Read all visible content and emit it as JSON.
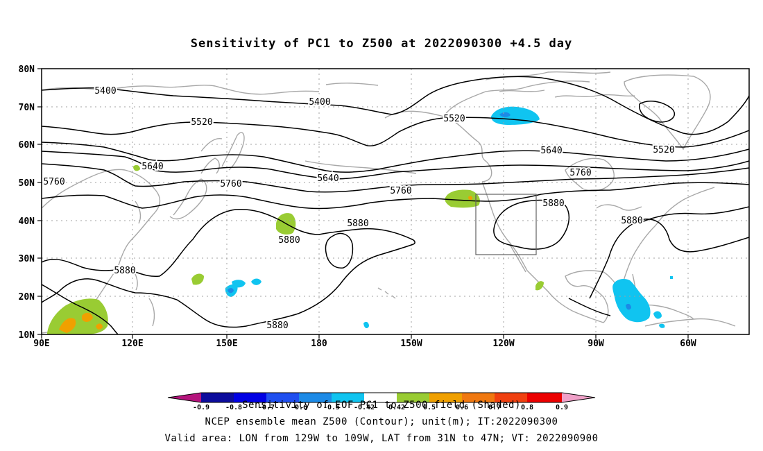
{
  "chart_data": {
    "type": "map",
    "title": "Sensitivity of PC1 to Z500 at 2022090300 +4.5 day",
    "x_ticks": [
      "90E",
      "120E",
      "150E",
      "180",
      "150W",
      "120W",
      "90W",
      "60W"
    ],
    "y_ticks": [
      "80N",
      "70N",
      "60N",
      "50N",
      "40N",
      "30N",
      "20N",
      "10N"
    ],
    "lon_range": [
      90,
      310
    ],
    "lat_range": [
      10,
      80
    ],
    "grid": "dotted",
    "contour_labels": [
      {
        "text": "5400",
        "lon": 110,
        "lat": 74
      },
      {
        "text": "5400",
        "lon": 180,
        "lat": 71
      },
      {
        "text": "5520",
        "lon": 136,
        "lat": 65
      },
      {
        "text": "5520",
        "lon": 205,
        "lat": 66
      },
      {
        "text": "5520",
        "lon": 282,
        "lat": 60
      },
      {
        "text": "5640",
        "lon": 127,
        "lat": 54
      },
      {
        "text": "5640",
        "lon": 202,
        "lat": 51
      },
      {
        "text": "5640",
        "lon": 260,
        "lat": 60
      },
      {
        "text": "5760",
        "lon": 93,
        "lat": 50
      },
      {
        "text": "5760",
        "lon": 150,
        "lat": 50
      },
      {
        "text": "5760",
        "lon": 225,
        "lat": 47
      },
      {
        "text": "5760",
        "lon": 271,
        "lat": 52
      },
      {
        "text": "5880",
        "lon": 167,
        "lat": 35
      },
      {
        "text": "5880",
        "lon": 183,
        "lat": 39
      },
      {
        "text": "5880",
        "lon": 117,
        "lat": 26
      },
      {
        "text": "5880",
        "lon": 253,
        "lat": 44
      },
      {
        "text": "5880",
        "lon": 291,
        "lat": 40
      },
      {
        "text": "5880",
        "lon": 177,
        "lat": 12
      }
    ],
    "valid_box": {
      "lon": [
        231,
        251
      ],
      "lat": [
        31,
        47
      ]
    },
    "colorbar": {
      "labels": [
        "-0.9",
        "-0.8",
        "-0.7",
        "-0.6",
        "-0.5",
        "-0.42",
        "0.42",
        "0.5",
        "0.6",
        "0.7",
        "0.8",
        "0.9"
      ],
      "colors": [
        "#b4147c",
        "#0c0c9c",
        "#0000e4",
        "#1f4ff0",
        "#1c8ae6",
        "#10c4f0",
        "#ffffff",
        "#99cc33",
        "#f0a000",
        "#f07810",
        "#f04010",
        "#ec0000",
        "#f0a0c8"
      ]
    },
    "caption_lines": [
      "Sensitivity of EOF PC1 to Z500 field (Shaded)",
      "NCEP ensemble mean Z500 (Contour); unit(m); IT:2022090300",
      "Valid area: LON from 129W to 109W, LAT from 31N to 47N; VT: 2022090900"
    ]
  }
}
